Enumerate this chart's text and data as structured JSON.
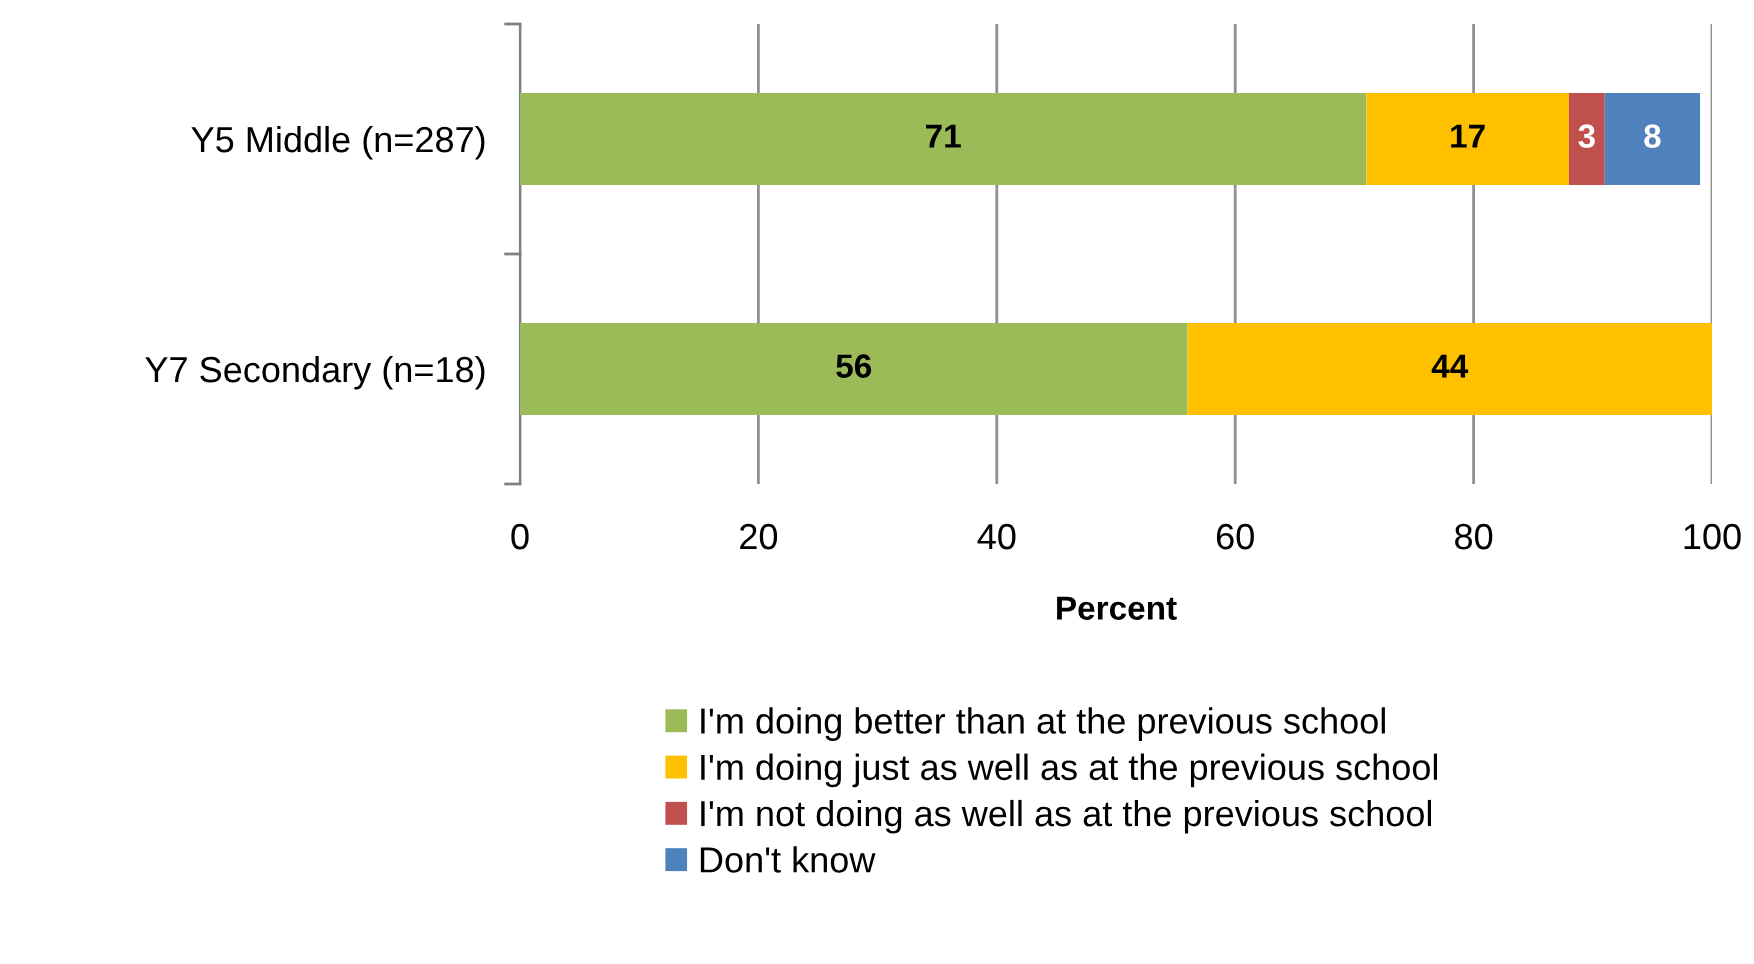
{
  "chart_data": {
    "type": "bar",
    "orientation": "horizontal",
    "stacked": true,
    "xlabel": "Percent",
    "categories": [
      "Y5 Middle (n=287)",
      "Y7 Secondary (n=18)"
    ],
    "series": [
      {
        "name": "I'm doing better than at the previous school",
        "color": "#9bbb59",
        "values": [
          71,
          56
        ]
      },
      {
        "name": "I'm doing just as well as at the previous school",
        "color": "#ffc000",
        "values": [
          17,
          44
        ]
      },
      {
        "name": "I'm not doing as well as at the previous school",
        "color": "#c0504d",
        "values": [
          3,
          null
        ]
      },
      {
        "name": "Don't know",
        "color": "#4f81bd",
        "values": [
          8,
          null
        ]
      }
    ],
    "xlim": [
      0,
      100
    ],
    "xticks": [
      0,
      20,
      40,
      60,
      80,
      100
    ],
    "grid": "x",
    "legend": "bottom",
    "data_labels": true
  }
}
